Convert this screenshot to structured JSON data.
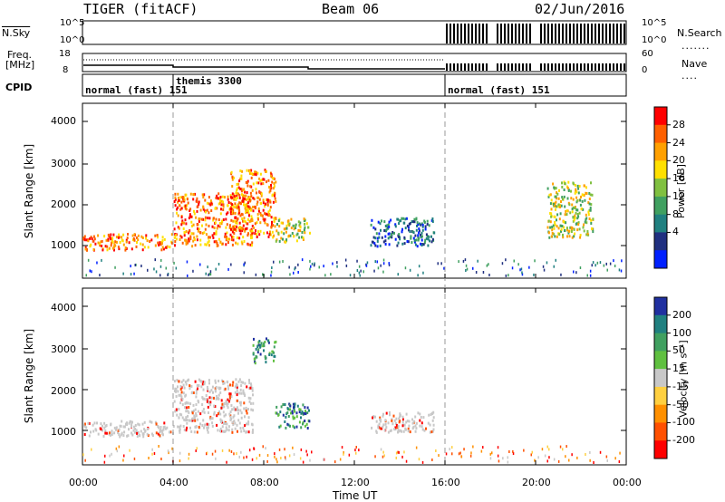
{
  "header": {
    "radar": "TIGER (fitACF)",
    "beam": "Beam 06",
    "date": "02/Jun/2016"
  },
  "top_panels": {
    "nsky_label": "N.Sky",
    "nsky_ticks": [
      "10^5",
      "10^0"
    ],
    "nsearch_label": "N.Search",
    "nsearch_ticks": [
      "10^5",
      "10^0"
    ],
    "freq_label": "Freq.",
    "freq_unit": "[MHz]",
    "freq_ticks": [
      "18",
      "8"
    ],
    "nave_label": "Nave",
    "nave_ticks": [
      "60",
      "0"
    ],
    "cpid_label": "CPID",
    "cpid_segments": [
      "normal (fast) 151",
      "themis 3300",
      "normal (fast) 151"
    ]
  },
  "colorbars": {
    "power": {
      "label": "Power [dB]",
      "ticks": [
        "28",
        "24",
        "20",
        "16",
        "12",
        "8",
        "4"
      ],
      "colors": [
        "#ff0000",
        "#ff6000",
        "#ffa000",
        "#ffe000",
        "#80c040",
        "#40a060",
        "#208080",
        "#203080",
        "#0020ff"
      ]
    },
    "velocity": {
      "label": "Velocity [m s⁻¹]",
      "ticks": [
        "200",
        "100",
        "50",
        "15",
        "-15",
        "-50",
        "-100",
        "-200"
      ],
      "colors": [
        "#2030a0",
        "#208080",
        "#40a060",
        "#60c040",
        "#c8c8c8",
        "#ffd040",
        "#ff9000",
        "#ff5000",
        "#ff0000"
      ]
    }
  },
  "chart_data": [
    {
      "type": "heatmap",
      "title": "Power",
      "ylabel": "Slant Range [km]",
      "xlim": [
        0,
        24
      ],
      "ylim": [
        180,
        4500
      ],
      "yticks": [
        "4000",
        "3000",
        "2000",
        "1000"
      ],
      "xticks": [
        "00:00",
        "04:00",
        "08:00",
        "12:00",
        "16:00",
        "20:00",
        "00:00"
      ],
      "regions": [
        {
          "t0": 0.0,
          "t1": 4.0,
          "r0": 900,
          "r1": 1300,
          "val": "high"
        },
        {
          "t0": 4.0,
          "t1": 7.5,
          "r0": 1000,
          "r1": 2300,
          "val": "high"
        },
        {
          "t0": 6.5,
          "t1": 8.5,
          "r0": 1200,
          "r1": 2900,
          "val": "high"
        },
        {
          "t0": 8.5,
          "t1": 10.0,
          "r0": 1100,
          "r1": 1700,
          "val": "mid"
        },
        {
          "t0": 12.7,
          "t1": 15.5,
          "r0": 1000,
          "r1": 1700,
          "val": "low"
        },
        {
          "t0": 20.5,
          "t1": 22.5,
          "r0": 1200,
          "r1": 2600,
          "val": "mid"
        }
      ]
    },
    {
      "type": "heatmap",
      "title": "Velocity",
      "ylabel": "Slant Range [km]",
      "xlabel": "Time UT",
      "xlim": [
        0,
        24
      ],
      "ylim": [
        180,
        4500
      ],
      "yticks": [
        "4000",
        "3000",
        "2000",
        "1000"
      ],
      "xticks": [
        "00:00",
        "04:00",
        "08:00",
        "12:00",
        "16:00",
        "20:00",
        "00:00"
      ],
      "regions": [
        {
          "t0": 0.0,
          "t1": 4.0,
          "r0": 900,
          "r1": 1300,
          "val": "~0"
        },
        {
          "t0": 4.0,
          "t1": 7.5,
          "r0": 1000,
          "r1": 2300,
          "val": "~0"
        },
        {
          "t0": 7.5,
          "t1": 8.5,
          "r0": 2700,
          "r1": 3300,
          "val": "positive"
        },
        {
          "t0": 8.5,
          "t1": 10.0,
          "r0": 1100,
          "r1": 1700,
          "val": "positive"
        },
        {
          "t0": 12.7,
          "t1": 15.5,
          "r0": 1000,
          "r1": 1500,
          "val": "~0"
        }
      ]
    }
  ]
}
